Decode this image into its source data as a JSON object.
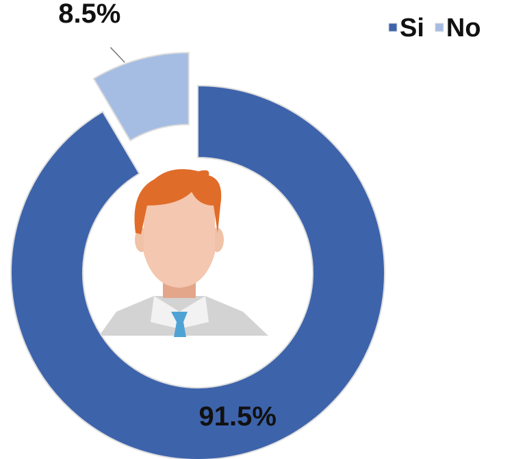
{
  "chart_data": {
    "type": "donut",
    "categories": [
      "Si",
      "No"
    ],
    "series": [
      {
        "values": [
          91.5,
          8.5
        ],
        "value_labels": [
          "91.5%",
          "8.5%"
        ],
        "colors": [
          "#3d63ab",
          "#a6bde3"
        ]
      }
    ],
    "legend": "top-right"
  }
}
